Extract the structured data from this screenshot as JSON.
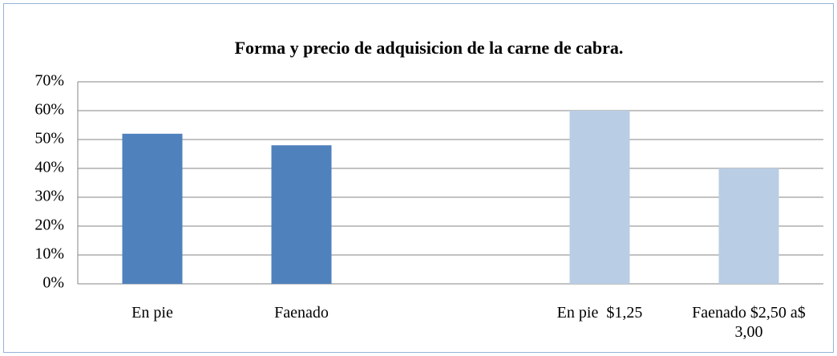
{
  "chart_data": {
    "type": "bar",
    "title": "Forma y precio de adquisicion de  la carne de cabra.",
    "categories": [
      "En pie",
      "Faenado",
      null,
      "En pie  $1,25",
      "Faenado $2,50 a$ 3,00"
    ],
    "values": [
      52,
      48,
      null,
      60,
      40
    ],
    "colors": [
      "#4f81bd",
      "#4f81bd",
      null,
      "#b9cde5",
      "#b9cde5"
    ],
    "ylim": [
      0,
      70
    ],
    "yticks": [
      {
        "value": 0,
        "label": "0%"
      },
      {
        "value": 10,
        "label": "10%"
      },
      {
        "value": 20,
        "label": "20%"
      },
      {
        "value": 30,
        "label": "30%"
      },
      {
        "value": 40,
        "label": "40%"
      },
      {
        "value": 50,
        "label": "50%"
      },
      {
        "value": 60,
        "label": "60%"
      },
      {
        "value": 70,
        "label": "70%"
      }
    ],
    "grid": true
  }
}
